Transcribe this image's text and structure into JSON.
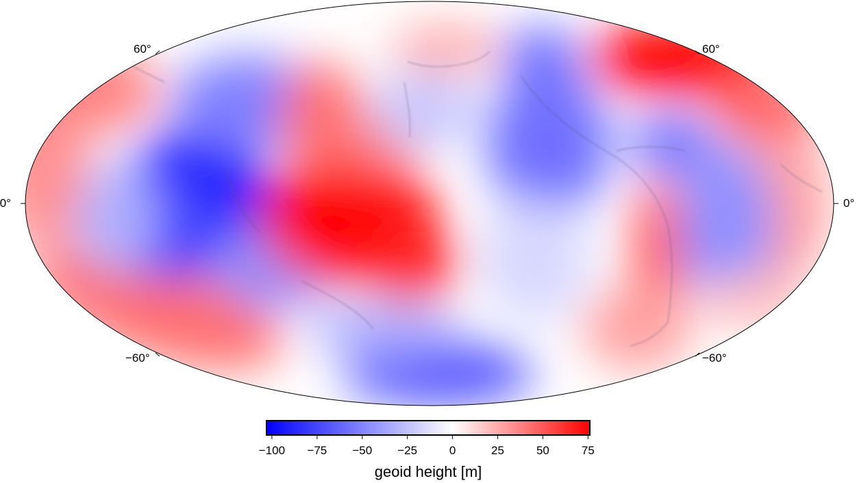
{
  "map": {
    "projection": "Mollweide",
    "latitude_labels": {
      "north_60": "60°",
      "equator": "0°",
      "south_60": "−60°"
    },
    "colormap": {
      "negative_color": "#0000ff",
      "mid_color": "#ffffff",
      "positive_color": "#ff0000"
    }
  },
  "colorbar": {
    "title": "geoid height [m]",
    "range": [
      -103,
      76
    ],
    "ticks": [
      {
        "value": -100,
        "label": "−100"
      },
      {
        "value": -75,
        "label": "−75"
      },
      {
        "value": -50,
        "label": "−50"
      },
      {
        "value": -25,
        "label": "−25"
      },
      {
        "value": 0,
        "label": "0"
      },
      {
        "value": 25,
        "label": "25"
      },
      {
        "value": 50,
        "label": "50"
      },
      {
        "value": 75,
        "label": "75"
      }
    ]
  }
}
